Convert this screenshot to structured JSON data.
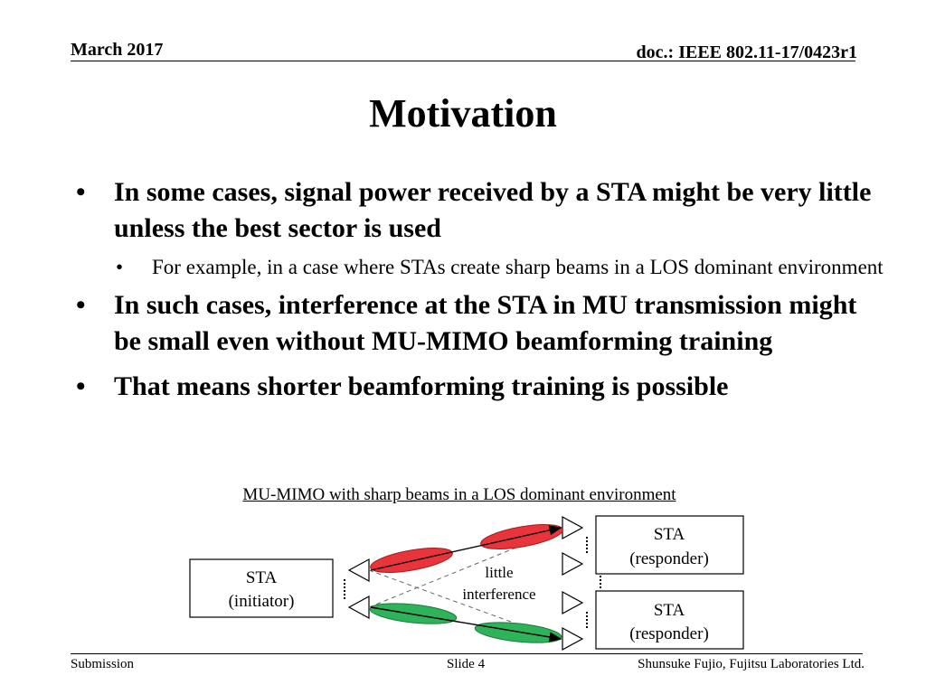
{
  "header": {
    "date": "March 2017",
    "doc_id": "doc.: IEEE 802.11-17/0423r1"
  },
  "title": "Motivation",
  "bullets": [
    {
      "text": "In some cases, signal power received by a STA might be very little unless the best sector is used",
      "sub": [
        "For example, in a case where STAs create sharp beams in a LOS dominant environment"
      ]
    },
    {
      "text": "In such cases, interference at the STA in MU transmission might be small even without MU-MIMO beamforming training",
      "sub": []
    },
    {
      "text": "That means shorter beamforming training is possible",
      "sub": []
    }
  ],
  "bullet_glyph": "•",
  "diagram": {
    "caption": "MU-MIMO with sharp beams in a LOS dominant environment",
    "initiator": {
      "line1": "STA",
      "line2": "(initiator)"
    },
    "responder_top": {
      "line1": "STA",
      "line2": "(responder)"
    },
    "responder_bottom": {
      "line1": "STA",
      "line2": "(responder)"
    },
    "interference_label": {
      "line1": "little",
      "line2": "interference"
    },
    "colors": {
      "red_beam": "#e8343a",
      "green_beam": "#2fb35a",
      "antenna": "#ffffff"
    }
  },
  "footer": {
    "left": "Submission",
    "center": "Slide 4",
    "right": "Shunsuke Fujio, Fujitsu Laboratories Ltd."
  }
}
